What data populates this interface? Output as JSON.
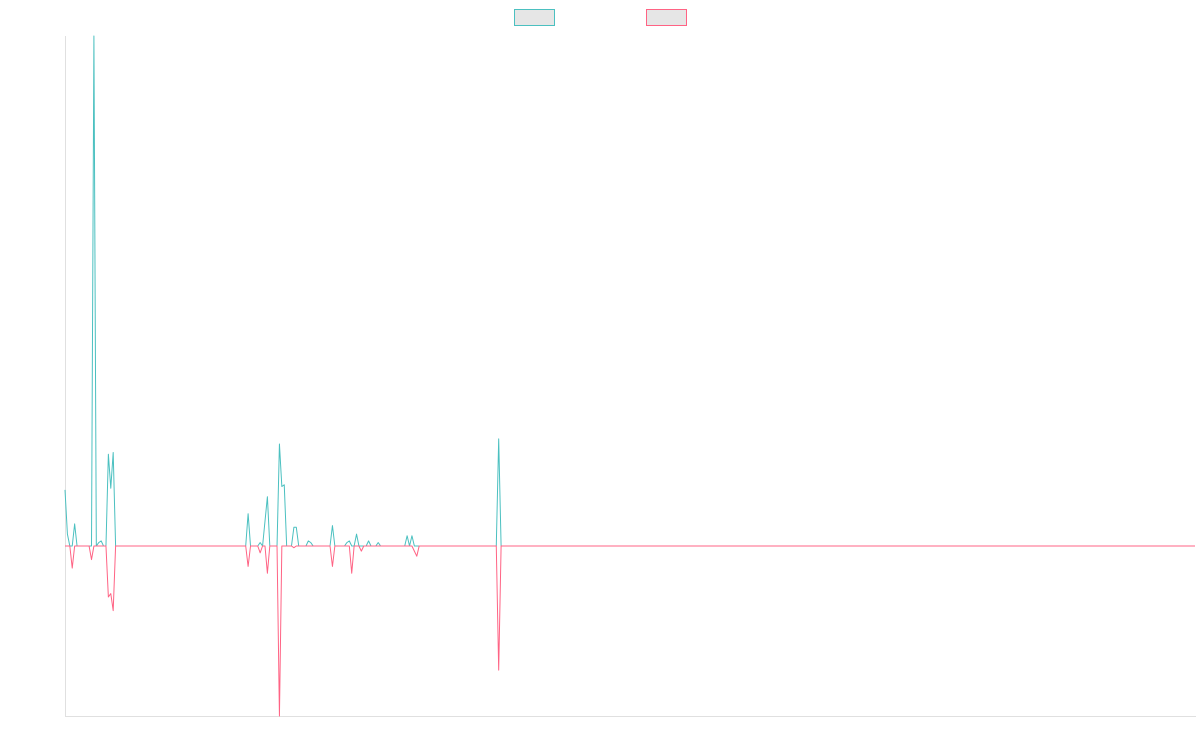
{
  "chart_data": {
    "type": "line",
    "title": "",
    "xlabel": "",
    "ylabel": "",
    "grid": false,
    "legend_position": "top-center",
    "x_count": 470,
    "ylim": [
      -1.0,
      3.0
    ],
    "colors": {
      "series_a": "#4bc0c0",
      "series_b": "#ff6384",
      "legend_fill": "#e6e6e6",
      "axis": "#e0e0e0"
    },
    "series": [
      {
        "id": "a",
        "name": "",
        "color": "#4bc0c0",
        "points": [
          [
            0,
            0.33
          ],
          [
            1,
            0.07
          ],
          [
            2,
            0.0
          ],
          [
            3,
            0.0
          ],
          [
            4,
            0.13
          ],
          [
            5,
            0.0
          ],
          [
            6,
            0.0
          ],
          [
            7,
            0.0
          ],
          [
            8,
            0.0
          ],
          [
            9,
            0.0
          ],
          [
            10,
            0.0
          ],
          [
            11,
            0.0
          ],
          [
            12,
            3.0
          ],
          [
            13,
            0.0
          ],
          [
            14,
            0.02
          ],
          [
            15,
            0.03
          ],
          [
            16,
            0.0
          ],
          [
            17,
            0.0
          ],
          [
            18,
            0.54
          ],
          [
            19,
            0.34
          ],
          [
            20,
            0.55
          ],
          [
            21,
            0.0
          ],
          [
            22,
            0.0
          ],
          [
            31,
            0.0
          ],
          [
            75,
            0.0
          ],
          [
            76,
            0.19
          ],
          [
            77,
            0.0
          ],
          [
            78,
            0.0
          ],
          [
            80,
            0.0
          ],
          [
            81,
            0.02
          ],
          [
            82,
            0.0
          ],
          [
            84,
            0.29
          ],
          [
            85,
            0.0
          ],
          [
            86,
            0.0
          ],
          [
            87,
            0.0
          ],
          [
            88,
            0.0
          ],
          [
            89,
            0.6
          ],
          [
            90,
            0.35
          ],
          [
            91,
            0.36
          ],
          [
            92,
            0.0
          ],
          [
            93,
            0.0
          ],
          [
            94,
            0.0
          ],
          [
            95,
            0.11
          ],
          [
            96,
            0.11
          ],
          [
            97,
            0.0
          ],
          [
            98,
            0.0
          ],
          [
            100,
            0.0
          ],
          [
            101,
            0.03
          ],
          [
            102,
            0.02
          ],
          [
            103,
            0.0
          ],
          [
            104,
            0.0
          ],
          [
            105,
            0.0
          ],
          [
            106,
            0.0
          ],
          [
            107,
            0.0
          ],
          [
            108,
            0.0
          ],
          [
            110,
            0.0
          ],
          [
            111,
            0.12
          ],
          [
            112,
            0.0
          ],
          [
            113,
            0.0
          ],
          [
            116,
            0.0
          ],
          [
            117,
            0.02
          ],
          [
            118,
            0.03
          ],
          [
            119,
            0.0
          ],
          [
            120,
            0.0
          ],
          [
            121,
            0.07
          ],
          [
            122,
            0.0
          ],
          [
            123,
            0.0
          ],
          [
            124,
            0.0
          ],
          [
            125,
            0.0
          ],
          [
            126,
            0.03
          ],
          [
            127,
            0.0
          ],
          [
            128,
            0.0
          ],
          [
            129,
            0.0
          ],
          [
            130,
            0.02
          ],
          [
            131,
            0.0
          ],
          [
            134,
            0.0
          ],
          [
            141,
            0.0
          ],
          [
            142,
            0.06
          ],
          [
            143,
            0.0
          ],
          [
            144,
            0.06
          ],
          [
            145,
            0.0
          ],
          [
            146,
            0.0
          ],
          [
            178,
            0.0
          ],
          [
            179,
            0.0
          ],
          [
            180,
            0.63
          ],
          [
            181,
            0.0
          ],
          [
            182,
            0.0
          ],
          [
            469,
            0.0
          ]
        ]
      },
      {
        "id": "b",
        "name": "",
        "color": "#ff6384",
        "points": [
          [
            0,
            0.0
          ],
          [
            1,
            0.0
          ],
          [
            2,
            0.0
          ],
          [
            3,
            -0.13
          ],
          [
            4,
            0.0
          ],
          [
            5,
            0.0
          ],
          [
            10,
            0.0
          ],
          [
            11,
            -0.08
          ],
          [
            12,
            0.0
          ],
          [
            13,
            0.0
          ],
          [
            17,
            0.0
          ],
          [
            18,
            -0.3
          ],
          [
            19,
            -0.28
          ],
          [
            20,
            -0.38
          ],
          [
            21,
            0.0
          ],
          [
            22,
            0.0
          ],
          [
            74,
            0.0
          ],
          [
            75,
            0.0
          ],
          [
            76,
            -0.12
          ],
          [
            77,
            0.0
          ],
          [
            80,
            0.0
          ],
          [
            81,
            -0.04
          ],
          [
            82,
            0.0
          ],
          [
            83,
            0.0
          ],
          [
            84,
            -0.16
          ],
          [
            85,
            0.0
          ],
          [
            86,
            0.0
          ],
          [
            88,
            0.0
          ],
          [
            89,
            -1.0
          ],
          [
            90,
            0.0
          ],
          [
            91,
            0.0
          ],
          [
            92,
            0.0
          ],
          [
            93,
            0.0
          ],
          [
            94,
            0.0
          ],
          [
            95,
            -0.01
          ],
          [
            96,
            0.0
          ],
          [
            110,
            0.0
          ],
          [
            111,
            -0.12
          ],
          [
            112,
            0.0
          ],
          [
            113,
            0.0
          ],
          [
            118,
            0.0
          ],
          [
            119,
            -0.16
          ],
          [
            120,
            0.0
          ],
          [
            121,
            0.0
          ],
          [
            122,
            0.0
          ],
          [
            123,
            -0.03
          ],
          [
            124,
            0.0
          ],
          [
            144,
            0.0
          ],
          [
            145,
            -0.03
          ],
          [
            146,
            -0.06
          ],
          [
            147,
            0.0
          ],
          [
            178,
            0.0
          ],
          [
            179,
            0.0
          ],
          [
            180,
            -0.73
          ],
          [
            181,
            0.0
          ],
          [
            469,
            0.0
          ]
        ]
      }
    ]
  }
}
